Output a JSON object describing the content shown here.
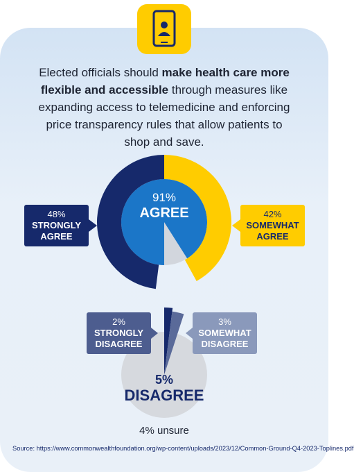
{
  "header": {
    "text": [
      "Elected officials should ",
      "make health care more flexible and accessible",
      " through measures like expanding access to telemedicine and enforcing price transparency rules that allow patients to shop and save."
    ]
  },
  "chart_data": [
    {
      "type": "donut",
      "center_value": 91,
      "center_value_label": "91%",
      "center_label": "AGREE",
      "center_color": "#1b76c8",
      "categories": [
        "STRONGLY AGREE",
        "SOMEWHAT AGREE"
      ],
      "values": [
        48,
        42
      ],
      "value_labels": [
        "48%",
        "42%"
      ],
      "colors": [
        "#16296b",
        "#ffcc00"
      ]
    },
    {
      "type": "pie",
      "center_value": 5,
      "center_value_label": "5%",
      "center_label": "DISAGREE",
      "center_color": "#16296b",
      "categories": [
        "STRONGLY DISAGREE",
        "SOMEWHAT DISAGREE"
      ],
      "values": [
        2,
        3
      ],
      "value_labels": [
        "2%",
        "3%"
      ],
      "colors": [
        "#16296b",
        "#5a6a99"
      ]
    }
  ],
  "footnote": "4% unsure",
  "source": "Source: https://www.commonwealthfoundation.org/wp-content/uploads/2023/12/Common-Ground-Q4-2023-Toplines.pdf"
}
